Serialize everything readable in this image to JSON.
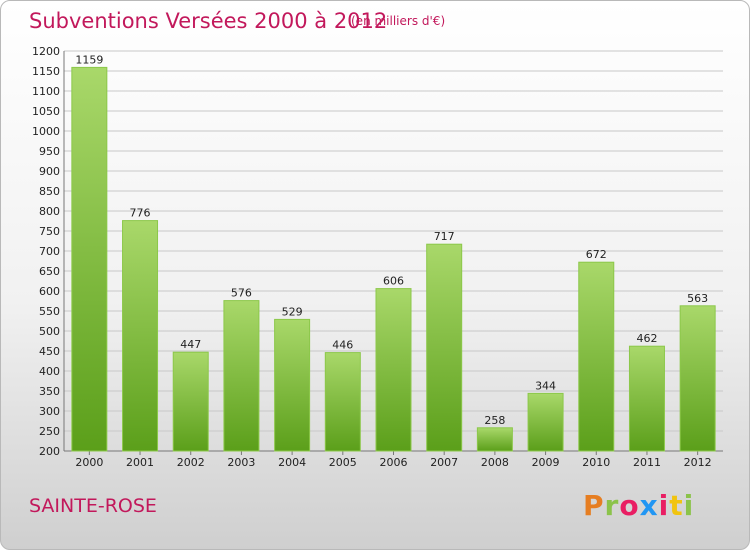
{
  "header": {
    "title": "Subventions Versées 2000 à 2012",
    "unit": "(en milliers d'€)"
  },
  "footer": {
    "commune": "SAINTE-ROSE",
    "brand": "Proxiti",
    "brand_colors": [
      "#e67e22",
      "#8bc34a",
      "#e91e63",
      "#2196f3",
      "#e91e63",
      "#f1c40f",
      "#8bc34a"
    ]
  },
  "colors": {
    "title": "#c2185b",
    "bar_top": "#a9d86a",
    "bar_bottom": "#5b9f1a",
    "grid": "#c8c8c8"
  },
  "chart_data": {
    "type": "bar",
    "categories": [
      "2000",
      "2001",
      "2002",
      "2003",
      "2004",
      "2005",
      "2006",
      "2007",
      "2008",
      "2009",
      "2010",
      "2011",
      "2012"
    ],
    "values": [
      1159,
      776,
      447,
      576,
      529,
      446,
      606,
      717,
      258,
      344,
      672,
      462,
      563
    ],
    "ylim": [
      200,
      1200
    ],
    "ytick_step": 50,
    "grid": true,
    "legend": "none"
  }
}
